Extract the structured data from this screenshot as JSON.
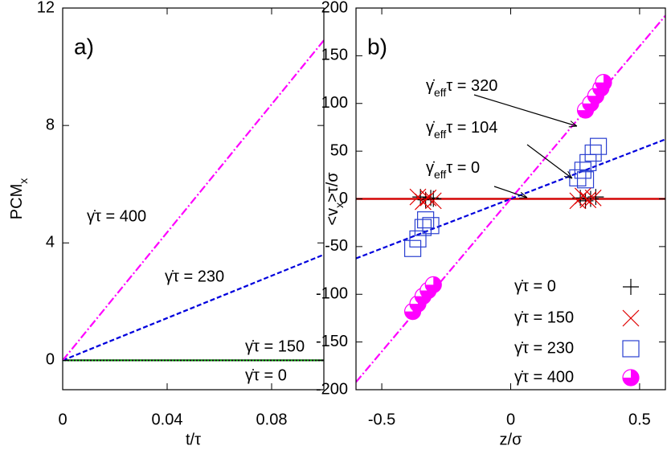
{
  "chart_data": [
    {
      "type": "line",
      "panel_label": "a)",
      "x_label": "t/τ",
      "y_label": [
        "PCM",
        "x"
      ],
      "xlim": [
        0,
        0.1
      ],
      "ylim": [
        -1,
        12
      ],
      "xticks": [
        0,
        0.04,
        0.08
      ],
      "yticks": [
        0,
        4,
        8,
        12
      ],
      "series": [
        {
          "name": "γ̇τ = 0",
          "color": "#000000",
          "dash": "",
          "x": [
            0,
            0.1
          ],
          "values": [
            0,
            0
          ]
        },
        {
          "name": "γ̇τ = 150",
          "color": "#00a000",
          "dash": "2,2",
          "x": [
            0,
            0.1
          ],
          "values": [
            0,
            0
          ]
        },
        {
          "name": "γ̇τ = 230",
          "color": "#0000dd",
          "dash": "6,3",
          "x": [
            0,
            0.1
          ],
          "values": [
            0,
            3.6
          ]
        },
        {
          "name": "γ̇τ = 400",
          "color": "#ff00ff",
          "dash": "10,3,2,3",
          "x": [
            0,
            0.1
          ],
          "values": [
            0,
            10.9
          ]
        }
      ]
    },
    {
      "type": "scatter",
      "panel_label": "b)",
      "x_label": "z/σ",
      "y_label": [
        "<v",
        "x",
        ">τ/σ"
      ],
      "xlim": [
        -0.6,
        0.6
      ],
      "ylim": [
        -200,
        200
      ],
      "xticks": [
        -0.5,
        0,
        0.5
      ],
      "yticks": [
        -200,
        -150,
        -100,
        -50,
        0,
        50,
        100,
        150,
        200
      ],
      "series": [
        {
          "name": "γ̇τ = 0",
          "color": "#000000",
          "marker": "plus",
          "x": [
            -0.35,
            -0.33,
            -0.31,
            -0.3,
            0.27,
            0.29,
            0.31,
            0.33
          ],
          "values": [
            2,
            -1,
            1,
            0,
            1,
            -2,
            0,
            2
          ]
        },
        {
          "name": "γ̇τ = 150",
          "color": "#e00000",
          "marker": "cross",
          "x": [
            -0.36,
            -0.34,
            -0.32,
            -0.3,
            0.26,
            0.28,
            0.3,
            0.32
          ],
          "values": [
            2,
            -3,
            1,
            -2,
            -2,
            3,
            -1,
            1
          ]
        },
        {
          "name": "γ̇τ = 230",
          "color": "#2a3fd0",
          "marker": "square",
          "x": [
            -0.38,
            -0.36,
            -0.34,
            -0.33,
            -0.31,
            0.26,
            0.28,
            0.29,
            0.3,
            0.32,
            0.34
          ],
          "values": [
            -52,
            -42,
            -30,
            -22,
            -28,
            22,
            30,
            20,
            38,
            48,
            55
          ]
        },
        {
          "name": "γ̇τ = 400",
          "color": "#ff00ff",
          "marker": "circle",
          "x": [
            -0.38,
            -0.36,
            -0.34,
            -0.32,
            -0.3,
            0.29,
            0.31,
            0.33,
            0.35,
            0.36
          ],
          "values": [
            -118,
            -110,
            -102,
            -96,
            -90,
            93,
            100,
            108,
            116,
            122
          ]
        }
      ],
      "fits": [
        {
          "label": [
            "γ̇",
            "eff",
            "τ = 0"
          ],
          "color": "#000000",
          "dash": "",
          "x": [
            -0.6,
            0.6
          ],
          "values": [
            0,
            0
          ]
        },
        {
          "color": "#e00000",
          "dash": "",
          "x": [
            -0.6,
            0.6
          ],
          "values": [
            0,
            0
          ]
        },
        {
          "label": [
            "γ̇",
            "eff",
            "τ = 104"
          ],
          "color": "#0000dd",
          "dash": "6,3",
          "x": [
            -0.6,
            0.6
          ],
          "values": [
            -62.4,
            62.4
          ]
        },
        {
          "label": [
            "γ̇",
            "eff",
            "τ = 320"
          ],
          "color": "#ff00ff",
          "dash": "10,3,2,3",
          "x": [
            -0.6,
            0.6
          ],
          "values": [
            -192,
            192
          ]
        }
      ]
    }
  ]
}
